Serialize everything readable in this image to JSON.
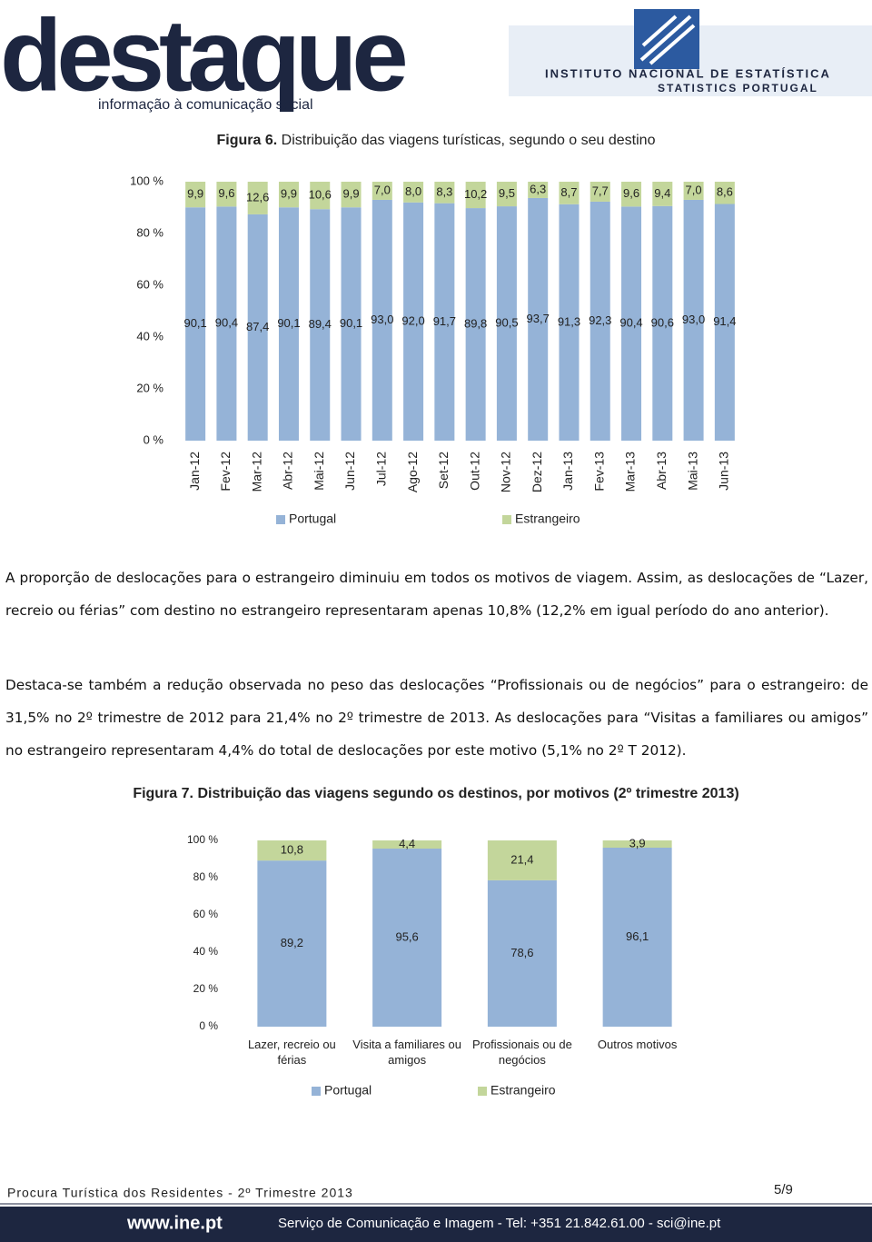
{
  "header": {
    "logo": "destaque",
    "tagline": "informação à comunicação social",
    "institute": "INSTITUTO NACIONAL DE ESTATÍSTICA",
    "institute_en": "STATISTICS PORTUGAL"
  },
  "chart_data": [
    {
      "type": "bar",
      "stacked": true,
      "figure_label": "Figura 6.",
      "title": "Distribuição das viagens turísticas, segundo o seu destino",
      "categories": [
        "Jan-12",
        "Fev-12",
        "Mar-12",
        "Abr-12",
        "Mai-12",
        "Jun-12",
        "Jul-12",
        "Ago-12",
        "Set-12",
        "Out-12",
        "Nov-12",
        "Dez-12",
        "Jan-13",
        "Fev-13",
        "Mar-13",
        "Abr-13",
        "Mai-13",
        "Jun-13"
      ],
      "series": [
        {
          "name": "Portugal",
          "color": "#95b3d7",
          "values": [
            90.1,
            90.4,
            87.4,
            90.1,
            89.4,
            90.1,
            93.0,
            92.0,
            91.7,
            89.8,
            90.5,
            93.7,
            91.3,
            92.3,
            90.4,
            90.6,
            93.0,
            91.4
          ],
          "value_labels": [
            "90,1",
            "90,4",
            "87,4",
            "90,1",
            "89,4",
            "90,1",
            "93,0",
            "92,0",
            "91,7",
            "89,8",
            "90,5",
            "93,7",
            "91,3",
            "92,3",
            "90,4",
            "90,6",
            "93,0",
            "91,4"
          ]
        },
        {
          "name": "Estrangeiro",
          "color": "#c3d69b",
          "values": [
            9.9,
            9.6,
            12.6,
            9.9,
            10.6,
            9.9,
            7.0,
            8.0,
            8.3,
            10.2,
            9.5,
            6.3,
            8.7,
            7.7,
            9.6,
            9.4,
            7.0,
            8.6
          ],
          "value_labels": [
            "9,9",
            "9,6",
            "12,6",
            "9,9",
            "10,6",
            "9,9",
            "7,0",
            "8,0",
            "8,3",
            "10,2",
            "9,5",
            "6,3",
            "8,7",
            "7,7",
            "9,6",
            "9,4",
            "7,0",
            "8,6"
          ]
        }
      ],
      "ylim": [
        0,
        100
      ],
      "yticks": [
        {
          "value": 0,
          "label": "0 %"
        },
        {
          "value": 20,
          "label": "20 %"
        },
        {
          "value": 40,
          "label": "40 %"
        },
        {
          "value": 60,
          "label": "60 %"
        },
        {
          "value": 80,
          "label": "80 %"
        },
        {
          "value": 100,
          "label": "100 %"
        }
      ],
      "legend": "bottom"
    },
    {
      "type": "bar",
      "stacked": true,
      "figure_label": "Figura 7.",
      "title": "Distribuição das viagens segundo os destinos, por motivos (2º trimestre 2013)",
      "categories": [
        "Lazer, recreio ou férias",
        "Visita a familiares ou amigos",
        "Profissionais ou de negócios",
        "Outros motivos"
      ],
      "series": [
        {
          "name": "Portugal",
          "color": "#95b3d7",
          "values": [
            89.2,
            95.6,
            78.6,
            96.1
          ],
          "value_labels": [
            "89,2",
            "95,6",
            "78,6",
            "96,1"
          ]
        },
        {
          "name": "Estrangeiro",
          "color": "#c3d69b",
          "values": [
            10.8,
            4.4,
            21.4,
            3.9
          ],
          "value_labels": [
            "10,8",
            "4,4",
            "21,4",
            "3,9"
          ]
        }
      ],
      "ylim": [
        0,
        100
      ],
      "yticks": [
        {
          "value": 0,
          "label": "0 %"
        },
        {
          "value": 20,
          "label": "20 %"
        },
        {
          "value": 40,
          "label": "40 %"
        },
        {
          "value": 60,
          "label": "60 %"
        },
        {
          "value": 80,
          "label": "80 %"
        },
        {
          "value": 100,
          "label": "100 %"
        }
      ],
      "legend": "bottom"
    }
  ],
  "paragraphs": [
    "A proporção de deslocações para o estrangeiro diminuiu em todos os motivos de viagem. Assim, as deslocações de “Lazer, recreio ou férias” com destino no estrangeiro representaram apenas 10,8% (12,2% em igual período do ano anterior).",
    "Destaca-se também a redução observada no peso das deslocações “Profissionais ou de negócios” para o estrangeiro: de 31,5% no 2º trimestre de 2012 para 21,4% no 2º trimestre de 2013. As deslocações para “Visitas a familiares ou amigos” no estrangeiro representaram 4,4% do total de deslocações por este motivo (5,1% no 2º T 2012)."
  ],
  "footer": {
    "document": "Procura Turística dos Residentes - 2º Trimestre 2013",
    "page": "5/9",
    "website": "www.ine.pt",
    "contact": "Serviço de Comunicação e Imagem - Tel: +351 21.842.61.00 - sci@ine.pt"
  }
}
